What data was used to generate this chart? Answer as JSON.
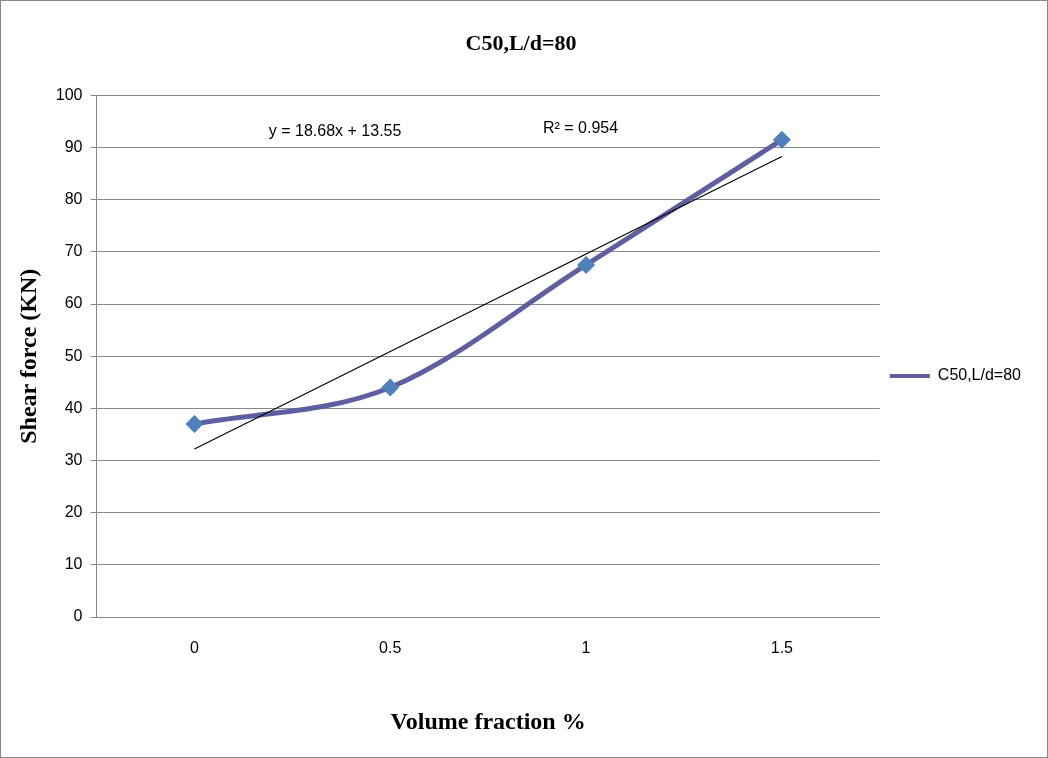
{
  "chart_data": {
    "type": "line",
    "title": "C50,L/d=80",
    "xlabel": "Volume fraction %",
    "ylabel": "Shear force (KN)",
    "categories": [
      "0",
      "0.5",
      "1",
      "1.5"
    ],
    "series": [
      {
        "name": "C50,L/d=80",
        "color": "#5f5ea0",
        "colors": [
          "#4f81bd",
          "#4f81bd",
          "#4f81bd",
          "#4f81bd"
        ],
        "values": [
          37,
          44,
          67.5,
          91.5
        ],
        "marker": "diamond"
      },
      {
        "type": "line",
        "color": "#000000",
        "values": [
          32.2,
          50.9,
          69.6,
          88.3
        ],
        "marker": "none"
      }
    ],
    "ylim": [
      0,
      100
    ],
    "yticks": [
      0,
      10,
      20,
      30,
      40,
      50,
      60,
      70,
      80,
      90,
      100
    ],
    "grid": "y",
    "legend": "right",
    "annotations": [
      "y = 18.68x + 13.55",
      "R² = 0.954"
    ]
  }
}
